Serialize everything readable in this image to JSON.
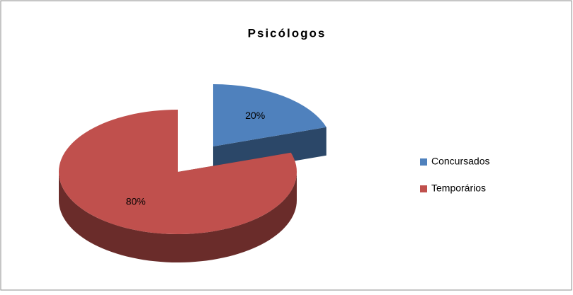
{
  "chart_data": {
    "type": "pie",
    "title": "Psicólogos",
    "categories": [
      "Concursados",
      "Temporários"
    ],
    "values": [
      20,
      80
    ],
    "value_labels": [
      "20%",
      "80%"
    ],
    "colors": [
      "#4f81bd",
      "#c0504d"
    ],
    "legend": "right",
    "exploded": [
      true,
      false
    ]
  }
}
